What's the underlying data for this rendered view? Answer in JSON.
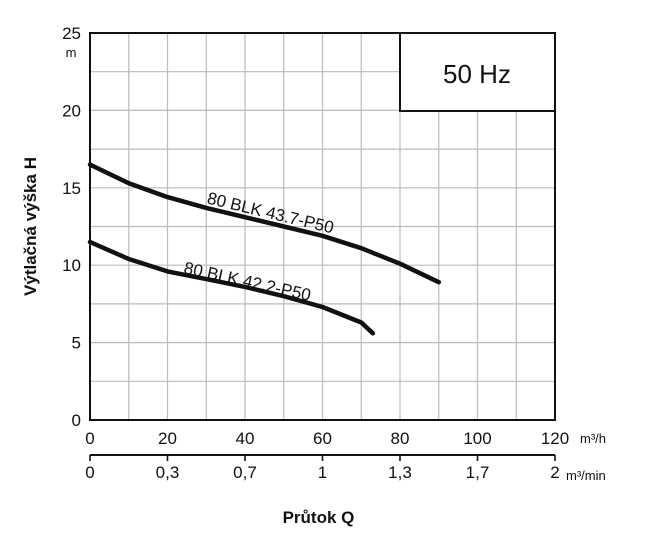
{
  "chart_data": {
    "type": "line",
    "ylabel": "Výtlačná výška H",
    "yunit": "m",
    "xlabel": "Průtok Q",
    "ylim": [
      0,
      25
    ],
    "yticks": [
      "0",
      "5",
      "10",
      "15",
      "20",
      "25"
    ],
    "xlim": [
      0,
      120
    ],
    "xticks": [
      "0",
      "20",
      "40",
      "60",
      "80",
      "100",
      "120"
    ],
    "xunit": "m³/h",
    "x2ticks": [
      "0",
      "0,3",
      "0,7",
      "1",
      "1,3",
      "1,7",
      "2"
    ],
    "x2unit": "m³/min",
    "annotation": "50 Hz",
    "grid": true,
    "series": [
      {
        "name": "80 BLK 43.7-P50",
        "x": [
          0,
          10,
          20,
          30,
          40,
          50,
          60,
          70,
          80,
          90
        ],
        "y": [
          16.5,
          15.3,
          14.4,
          13.7,
          13.1,
          12.5,
          11.9,
          11.1,
          10.1,
          8.9
        ]
      },
      {
        "name": "80 BLK 42.2-P50",
        "x": [
          0,
          10,
          20,
          30,
          40,
          50,
          60,
          70,
          73
        ],
        "y": [
          11.5,
          10.4,
          9.6,
          9.1,
          8.6,
          8.0,
          7.3,
          6.3,
          5.6
        ]
      }
    ]
  }
}
